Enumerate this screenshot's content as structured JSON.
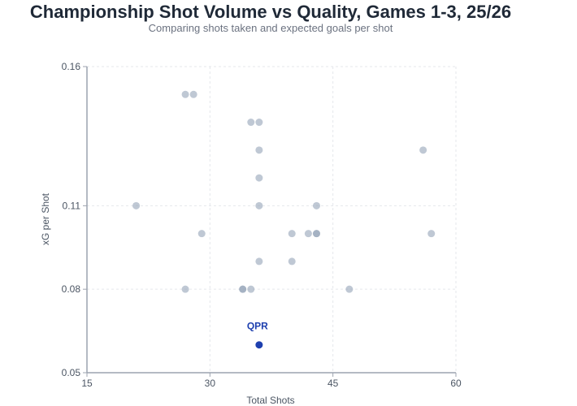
{
  "chart_data": {
    "type": "scatter",
    "title": "Championship Shot Volume vs Quality, Games 1-3, 25/26",
    "subtitle": "Comparing shots taken and expected goals per shot",
    "xlabel": "Total Shots",
    "ylabel": "xG per Shot",
    "xlim": [
      15,
      60
    ],
    "ylim": [
      0.05,
      0.16
    ],
    "xticks": [
      "15",
      "30",
      "45",
      "60"
    ],
    "yticks": [
      "0.05",
      "0.08",
      "0.11",
      "0.16"
    ],
    "grid": true,
    "colors": {
      "others": "#b4bfcf",
      "highlight": "#1e40af"
    },
    "points": [
      {
        "x": 27,
        "y": 0.15
      },
      {
        "x": 28,
        "y": 0.15
      },
      {
        "x": 35,
        "y": 0.14
      },
      {
        "x": 36,
        "y": 0.14
      },
      {
        "x": 36,
        "y": 0.13
      },
      {
        "x": 56,
        "y": 0.13
      },
      {
        "x": 36,
        "y": 0.12
      },
      {
        "x": 21,
        "y": 0.11
      },
      {
        "x": 36,
        "y": 0.11
      },
      {
        "x": 43,
        "y": 0.11
      },
      {
        "x": 29,
        "y": 0.1
      },
      {
        "x": 40,
        "y": 0.1
      },
      {
        "x": 42,
        "y": 0.1
      },
      {
        "x": 43,
        "y": 0.1
      },
      {
        "x": 43,
        "y": 0.1
      },
      {
        "x": 57,
        "y": 0.1
      },
      {
        "x": 36,
        "y": 0.09
      },
      {
        "x": 40,
        "y": 0.09
      },
      {
        "x": 27,
        "y": 0.08
      },
      {
        "x": 34,
        "y": 0.08
      },
      {
        "x": 34,
        "y": 0.08
      },
      {
        "x": 35,
        "y": 0.08
      },
      {
        "x": 47,
        "y": 0.08
      }
    ],
    "highlight": {
      "label": "QPR",
      "x": 36,
      "y": 0.06
    }
  }
}
